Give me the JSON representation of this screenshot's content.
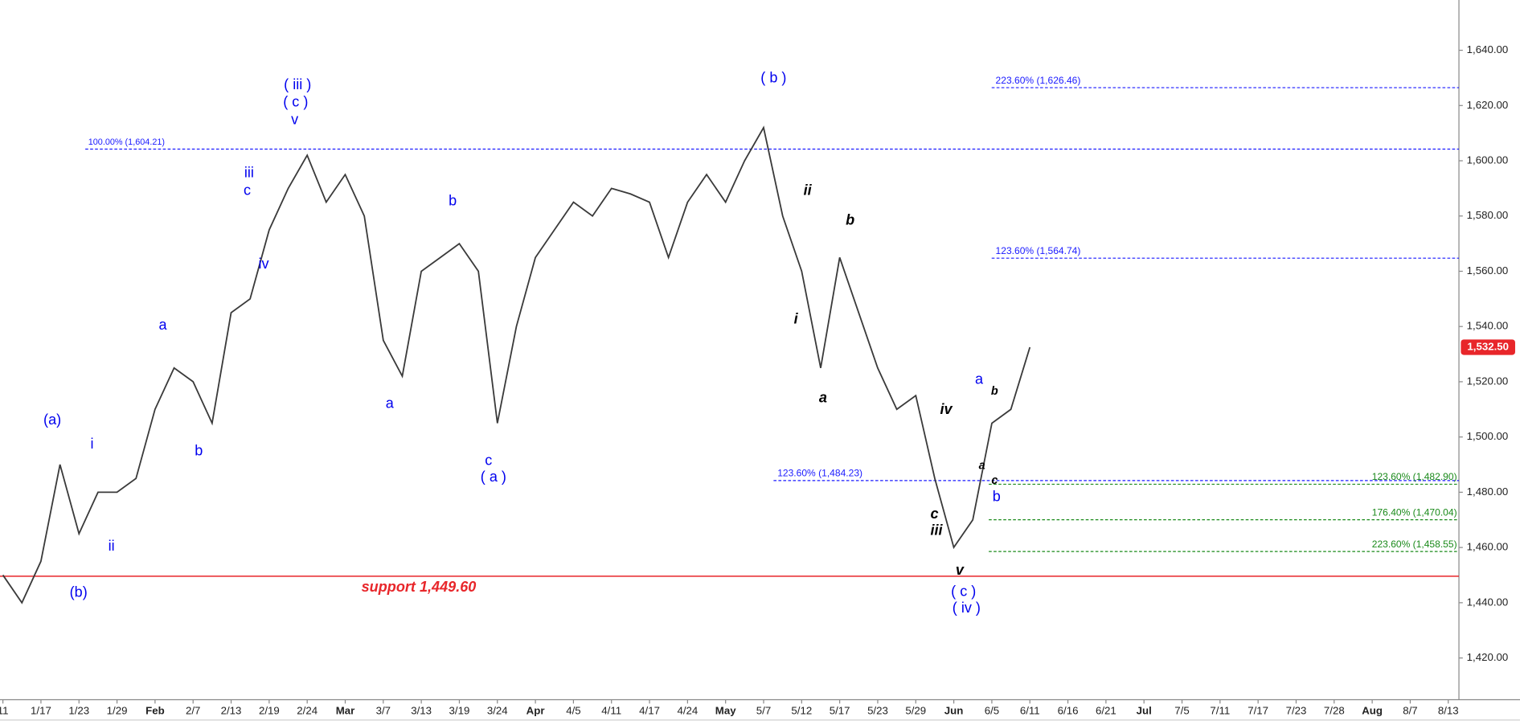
{
  "chart_data": {
    "type": "line",
    "categories": [
      "11",
      null,
      "1/17",
      null,
      "1/23",
      null,
      "1/29",
      null,
      "Feb",
      null,
      "2/7",
      null,
      "2/13",
      null,
      "2/19",
      null,
      "2/24",
      null,
      "Mar",
      null,
      "3/7",
      null,
      "3/13",
      null,
      "3/19",
      null,
      "3/24",
      null,
      "Apr",
      null,
      "4/5",
      null,
      "4/11",
      null,
      "4/17",
      null,
      "4/24",
      null,
      "May",
      null,
      "5/7",
      null,
      "5/12",
      null,
      "5/17",
      null,
      "5/23",
      null,
      "5/29",
      null,
      "Jun",
      null,
      "6/5",
      null,
      "6/11",
      null,
      "6/16",
      null,
      "6/21",
      null,
      "Jul",
      null,
      "7/5",
      null,
      "7/11",
      null,
      "7/17",
      null,
      "7/23",
      null,
      "7/28",
      null,
      "Aug",
      null,
      "8/7",
      null,
      "8/13"
    ],
    "values": [
      1450,
      1440,
      1455,
      1490,
      1465,
      1480,
      1480,
      1485,
      1510,
      1525,
      1520,
      1505,
      1545,
      1550,
      1575,
      1590,
      1602,
      1585,
      1595,
      1580,
      1535,
      1522,
      1560,
      1565,
      1570,
      1560,
      1505,
      1540,
      1565,
      1575,
      1585,
      1580,
      1590,
      1588,
      1585,
      1565,
      1585,
      1595,
      1585,
      1600,
      1612,
      1580,
      1560,
      1525,
      1565,
      1545,
      1525,
      1510,
      1515,
      1485,
      1460,
      1470,
      1505,
      1510,
      1532.5,
      null,
      null,
      null,
      null,
      null,
      null,
      null,
      null,
      null,
      null,
      null,
      null,
      null,
      null,
      null,
      null,
      null,
      null,
      null,
      null,
      null,
      null
    ],
    "color": "#3a3a3a",
    "ylim": [
      1404.9,
      1658.2
    ],
    "yticks": [
      {
        "value": 1420,
        "label": "1,420.00"
      },
      {
        "value": 1440,
        "label": "1,440.00"
      },
      {
        "value": 1460,
        "label": "1,460.00"
      },
      {
        "value": 1480,
        "label": "1,480.00"
      },
      {
        "value": 1500,
        "label": "1,500.00"
      },
      {
        "value": 1520,
        "label": "1,520.00"
      },
      {
        "value": 1540,
        "label": "1,540.00"
      },
      {
        "value": 1560,
        "label": "1,560.00"
      },
      {
        "value": 1580,
        "label": "1,580.00"
      },
      {
        "value": 1600,
        "label": "1,600.00"
      },
      {
        "value": 1620,
        "label": "1,620.00"
      },
      {
        "value": 1640,
        "label": "1,640.00"
      }
    ],
    "last_price": {
      "value": 1532.5,
      "label": "1,532.50",
      "color": "#e8262a"
    },
    "levels": [
      {
        "label": "223.60% (1,626.46)",
        "value": 1626.46,
        "color": "#1a1aff"
      },
      {
        "label": "100.00% (1,604.21)",
        "value": 1604.21,
        "color": "#1a1aff"
      },
      {
        "label": "123.60% (1,564.74)",
        "value": 1564.74,
        "color": "#1a1aff"
      },
      {
        "label": "123.60% (1,484.23)",
        "value": 1484.23,
        "color": "#1a1aff"
      },
      {
        "label": "123.60% (1,482.90)",
        "value": 1482.9,
        "color": "#1a8a1a"
      },
      {
        "label": "176.40% (1,470.04)",
        "value": 1470.04,
        "color": "#1a8a1a"
      },
      {
        "label": "223.60% (1,458.55)",
        "value": 1458.55,
        "color": "#1a8a1a"
      },
      {
        "label": "support 1,449.60",
        "value": 1449.6,
        "color": "#e8262a"
      }
    ],
    "annotations": [
      {
        "text": "(a)",
        "color": "#0000ee"
      },
      {
        "text": "(b)",
        "color": "#0000ee"
      },
      {
        "text": "i",
        "color": "#0000ee"
      },
      {
        "text": "ii",
        "color": "#0000ee"
      },
      {
        "text": "a",
        "color": "#0000ee"
      },
      {
        "text": "b",
        "color": "#0000ee"
      },
      {
        "text": "iii",
        "color": "#0000ee"
      },
      {
        "text": "c",
        "color": "#0000ee"
      },
      {
        "text": "iv",
        "color": "#0000ee"
      },
      {
        "text": "( iii )",
        "color": "#0000ee"
      },
      {
        "text": "( c )",
        "color": "#0000ee"
      },
      {
        "text": "v",
        "color": "#0000ee"
      },
      {
        "text": "a",
        "color": "#0000ee"
      },
      {
        "text": "b",
        "color": "#0000ee"
      },
      {
        "text": "c",
        "color": "#0000ee"
      },
      {
        "text": "( a )",
        "color": "#0000ee"
      },
      {
        "text": "( b )",
        "color": "#0000ee"
      },
      {
        "text": "ii",
        "color": "#000000"
      },
      {
        "text": "b",
        "color": "#000000"
      },
      {
        "text": "i",
        "color": "#000000"
      },
      {
        "text": "a",
        "color": "#000000"
      },
      {
        "text": "iv",
        "color": "#000000"
      },
      {
        "text": "c",
        "color": "#000000"
      },
      {
        "text": "iii",
        "color": "#000000"
      },
      {
        "text": "v",
        "color": "#000000"
      },
      {
        "text": "( c )",
        "color": "#0000ee"
      },
      {
        "text": "( iv )",
        "color": "#0000ee"
      },
      {
        "text": "a",
        "color": "#0000ee"
      },
      {
        "text": "b",
        "color": "#000000"
      },
      {
        "text": "a",
        "color": "#000000"
      },
      {
        "text": "c",
        "color": "#000000"
      },
      {
        "text": "b",
        "color": "#0000ee"
      }
    ]
  }
}
